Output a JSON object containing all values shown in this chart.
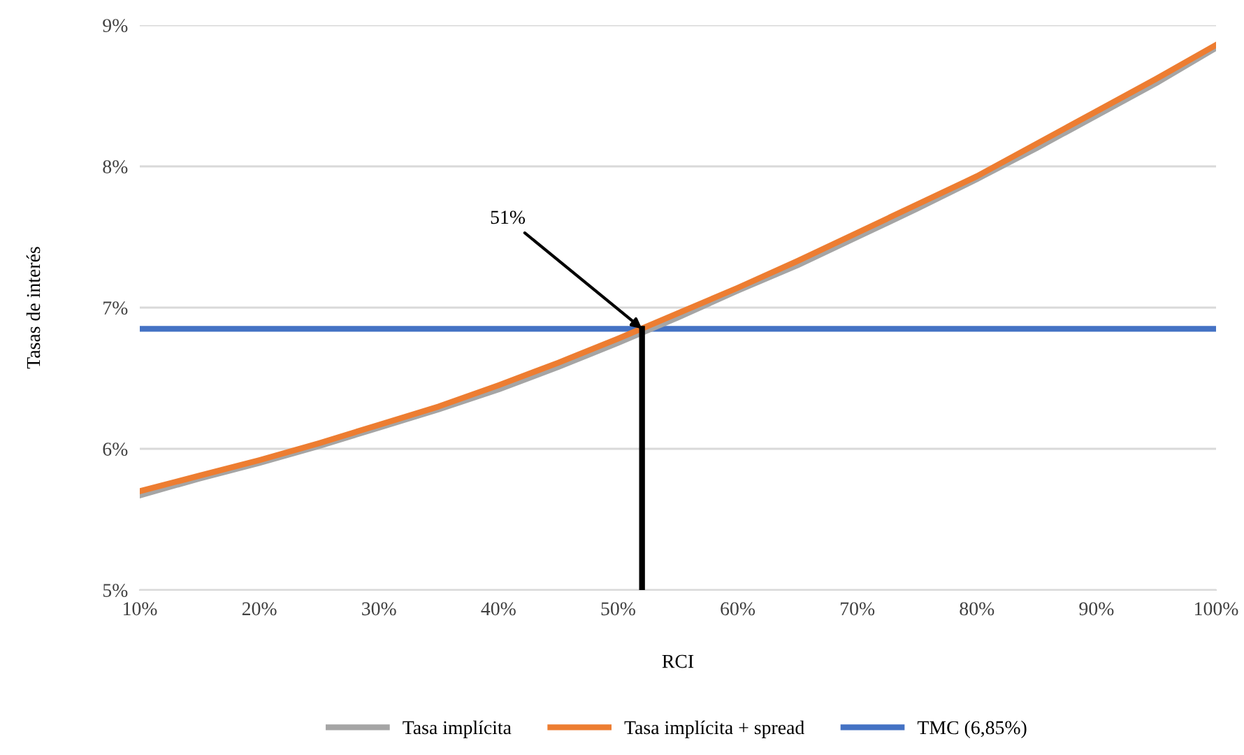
{
  "chart_data": {
    "type": "line",
    "xlabel": "RCI",
    "ylabel": "Tasas de interés",
    "x": [
      10,
      15,
      20,
      25,
      30,
      35,
      40,
      45,
      50,
      55,
      60,
      65,
      70,
      75,
      80,
      85,
      90,
      95,
      100
    ],
    "series": [
      {
        "name": "Tasa implícita",
        "color": "#a5a5a5",
        "values": [
          5.67,
          5.79,
          5.9,
          6.02,
          6.15,
          6.28,
          6.42,
          6.58,
          6.75,
          6.93,
          7.12,
          7.3,
          7.5,
          7.7,
          7.91,
          8.13,
          8.36,
          8.59,
          8.84
        ]
      },
      {
        "name": "Tasa implícita + spread",
        "color": "#ed7d31",
        "values": [
          5.7,
          5.81,
          5.92,
          6.04,
          6.17,
          6.3,
          6.45,
          6.61,
          6.78,
          6.96,
          7.14,
          7.33,
          7.53,
          7.73,
          7.93,
          8.16,
          8.39,
          8.62,
          8.86
        ]
      },
      {
        "name": "TMC (6,85%)",
        "color": "#4472c4",
        "x": [
          10,
          100
        ],
        "values": [
          6.85,
          6.85
        ]
      }
    ],
    "xlim": [
      10,
      100
    ],
    "xticks": [
      {
        "value": 10,
        "label": "10%"
      },
      {
        "value": 20,
        "label": "20%"
      },
      {
        "value": 30,
        "label": "30%"
      },
      {
        "value": 40,
        "label": "40%"
      },
      {
        "value": 50,
        "label": "50%"
      },
      {
        "value": 60,
        "label": "60%"
      },
      {
        "value": 70,
        "label": "70%"
      },
      {
        "value": 80,
        "label": "80%"
      },
      {
        "value": 90,
        "label": "90%"
      },
      {
        "value": 100,
        "label": "100%"
      }
    ],
    "ylim": [
      5,
      9
    ],
    "yticks": [
      {
        "value": 5,
        "label": "5%"
      },
      {
        "value": 6,
        "label": "6%"
      },
      {
        "value": 7,
        "label": "7%"
      },
      {
        "value": 8,
        "label": "8%"
      },
      {
        "value": 9,
        "label": "9%"
      }
    ],
    "ref_lines": [
      {
        "axis": "x",
        "value": 52,
        "color": "#000000"
      }
    ],
    "annotations": [
      {
        "text": "51%",
        "x": 52,
        "y": 6.85
      }
    ],
    "grid": "y",
    "legend": "bottom",
    "marker": "none",
    "line_style": "solid"
  }
}
